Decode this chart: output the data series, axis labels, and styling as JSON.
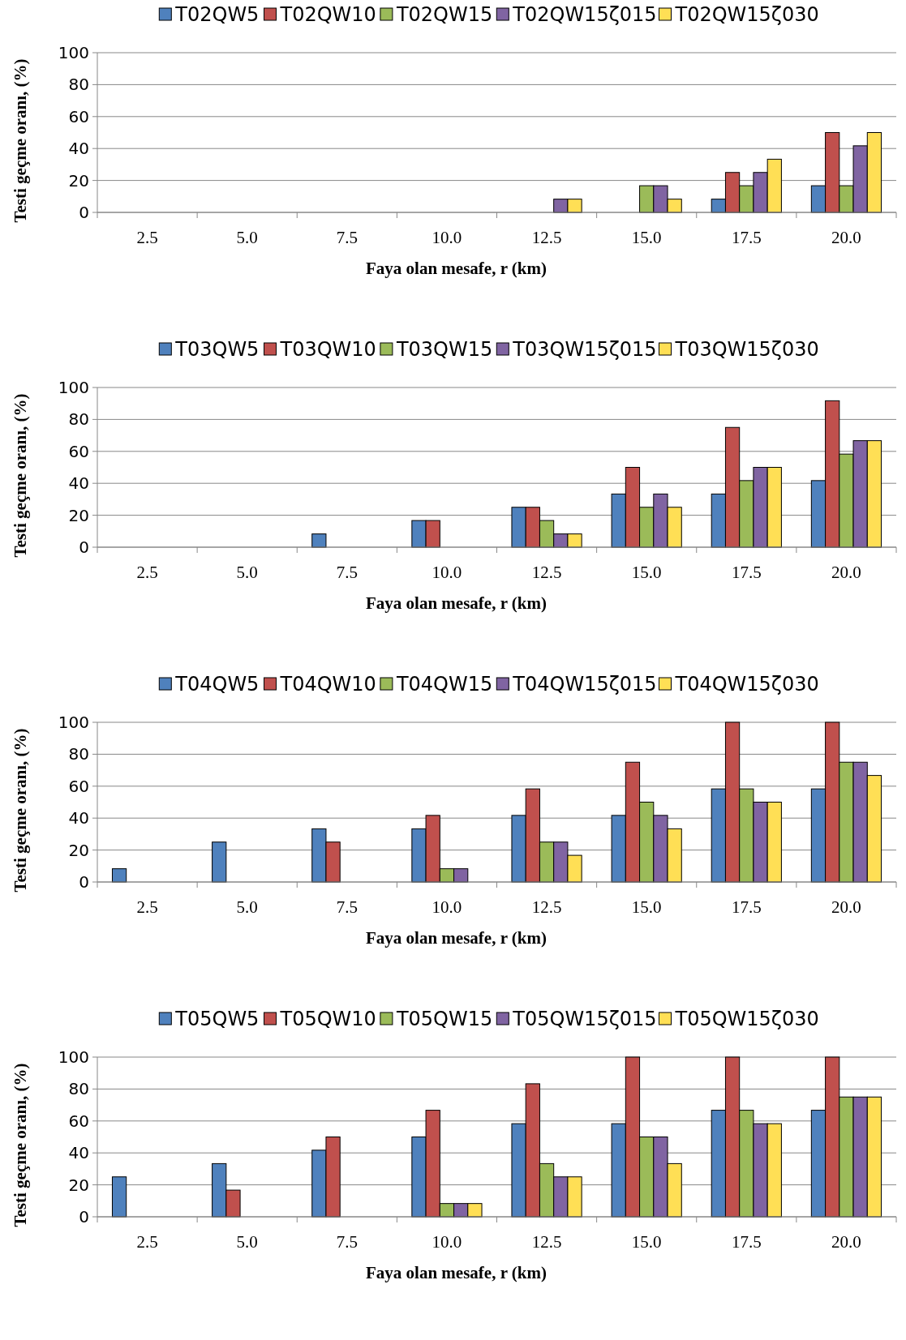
{
  "chart_data": [
    {
      "type": "bar",
      "xlabel": "Faya olan mesafe, r (km)",
      "ylabel": "Testi geçme oranı, (%)",
      "categories": [
        "2.5",
        "5.0",
        "7.5",
        "10.0",
        "12.5",
        "15.0",
        "17.5",
        "20.0"
      ],
      "ylim": [
        0,
        100
      ],
      "yticks": [
        0,
        20,
        40,
        60,
        80,
        100
      ],
      "grid": "y",
      "legend": "top",
      "series": [
        {
          "name": "T02QW5",
          "color": "#4f81bd",
          "values": [
            0,
            0,
            0,
            0,
            0,
            0,
            8.3,
            16.7
          ]
        },
        {
          "name": "T02QW10",
          "color": "#c0504d",
          "values": [
            0,
            0,
            0,
            0,
            0,
            0,
            25,
            50
          ]
        },
        {
          "name": "T02QW15",
          "color": "#9bbb59",
          "values": [
            0,
            0,
            0,
            0,
            0,
            16.7,
            16.7,
            16.7
          ]
        },
        {
          "name": "T02QW15ζ015",
          "color": "#8064a2",
          "values": [
            0,
            0,
            0,
            0,
            8.3,
            16.7,
            25,
            41.7
          ]
        },
        {
          "name": "T02QW15ζ030",
          "color": "#ffdf55",
          "values": [
            0,
            0,
            0,
            0,
            8.3,
            8.3,
            33.3,
            50
          ]
        }
      ]
    },
    {
      "type": "bar",
      "xlabel": "Faya olan mesafe, r (km)",
      "ylabel": "Testi geçme oranı, (%)",
      "categories": [
        "2.5",
        "5.0",
        "7.5",
        "10.0",
        "12.5",
        "15.0",
        "17.5",
        "20.0"
      ],
      "ylim": [
        0,
        100
      ],
      "yticks": [
        0,
        20,
        40,
        60,
        80,
        100
      ],
      "grid": "y",
      "legend": "top",
      "series": [
        {
          "name": "T03QW5",
          "color": "#4f81bd",
          "values": [
            0,
            0,
            8.3,
            16.7,
            25,
            33.3,
            33.3,
            41.7
          ]
        },
        {
          "name": "T03QW10",
          "color": "#c0504d",
          "values": [
            0,
            0,
            0,
            16.7,
            25,
            50,
            75,
            91.7
          ]
        },
        {
          "name": "T03QW15",
          "color": "#9bbb59",
          "values": [
            0,
            0,
            0,
            0,
            16.7,
            25,
            41.7,
            58.3
          ]
        },
        {
          "name": "T03QW15ζ015",
          "color": "#8064a2",
          "values": [
            0,
            0,
            0,
            0,
            8.3,
            33.3,
            50,
            66.7
          ]
        },
        {
          "name": "T03QW15ζ030",
          "color": "#ffdf55",
          "values": [
            0,
            0,
            0,
            0,
            8.3,
            25,
            50,
            66.7
          ]
        }
      ]
    },
    {
      "type": "bar",
      "xlabel": "Faya olan mesafe, r (km)",
      "ylabel": "Testi geçme oranı, (%)",
      "categories": [
        "2.5",
        "5.0",
        "7.5",
        "10.0",
        "12.5",
        "15.0",
        "17.5",
        "20.0"
      ],
      "ylim": [
        0,
        100
      ],
      "yticks": [
        0,
        20,
        40,
        60,
        80,
        100
      ],
      "grid": "y",
      "legend": "top",
      "series": [
        {
          "name": "T04QW5",
          "color": "#4f81bd",
          "values": [
            8.3,
            25,
            33.3,
            33.3,
            41.7,
            41.7,
            58.3,
            58.3
          ]
        },
        {
          "name": "T04QW10",
          "color": "#c0504d",
          "values": [
            0,
            0,
            25,
            41.7,
            58.3,
            75,
            100,
            100
          ]
        },
        {
          "name": "T04QW15",
          "color": "#9bbb59",
          "values": [
            0,
            0,
            0,
            8.3,
            25,
            50,
            58.3,
            75
          ]
        },
        {
          "name": "T04QW15ζ015",
          "color": "#8064a2",
          "values": [
            0,
            0,
            0,
            8.3,
            25,
            41.7,
            50,
            75
          ]
        },
        {
          "name": "T04QW15ζ030",
          "color": "#ffdf55",
          "values": [
            0,
            0,
            0,
            0,
            16.7,
            33.3,
            50,
            66.7
          ]
        }
      ]
    },
    {
      "type": "bar",
      "xlabel": "Faya olan mesafe, r (km)",
      "ylabel": "Testi geçme oranı, (%)",
      "categories": [
        "2.5",
        "5.0",
        "7.5",
        "10.0",
        "12.5",
        "15.0",
        "17.5",
        "20.0"
      ],
      "ylim": [
        0,
        100
      ],
      "yticks": [
        0,
        20,
        40,
        60,
        80,
        100
      ],
      "grid": "y",
      "legend": "top",
      "series": [
        {
          "name": "T05QW5",
          "color": "#4f81bd",
          "values": [
            25,
            33.3,
            41.7,
            50,
            58.3,
            58.3,
            66.7,
            66.7
          ]
        },
        {
          "name": "T05QW10",
          "color": "#c0504d",
          "values": [
            0,
            16.7,
            50,
            66.7,
            83.3,
            100,
            100,
            100
          ]
        },
        {
          "name": "T05QW15",
          "color": "#9bbb59",
          "values": [
            0,
            0,
            0,
            8.3,
            33.3,
            50,
            66.7,
            75
          ]
        },
        {
          "name": "T05QW15ζ015",
          "color": "#8064a2",
          "values": [
            0,
            0,
            0,
            8.3,
            25,
            50,
            58.3,
            75
          ]
        },
        {
          "name": "T05QW15ζ030",
          "color": "#ffdf55",
          "values": [
            0,
            0,
            0,
            8.3,
            25,
            33.3,
            58.3,
            75
          ]
        }
      ]
    }
  ]
}
